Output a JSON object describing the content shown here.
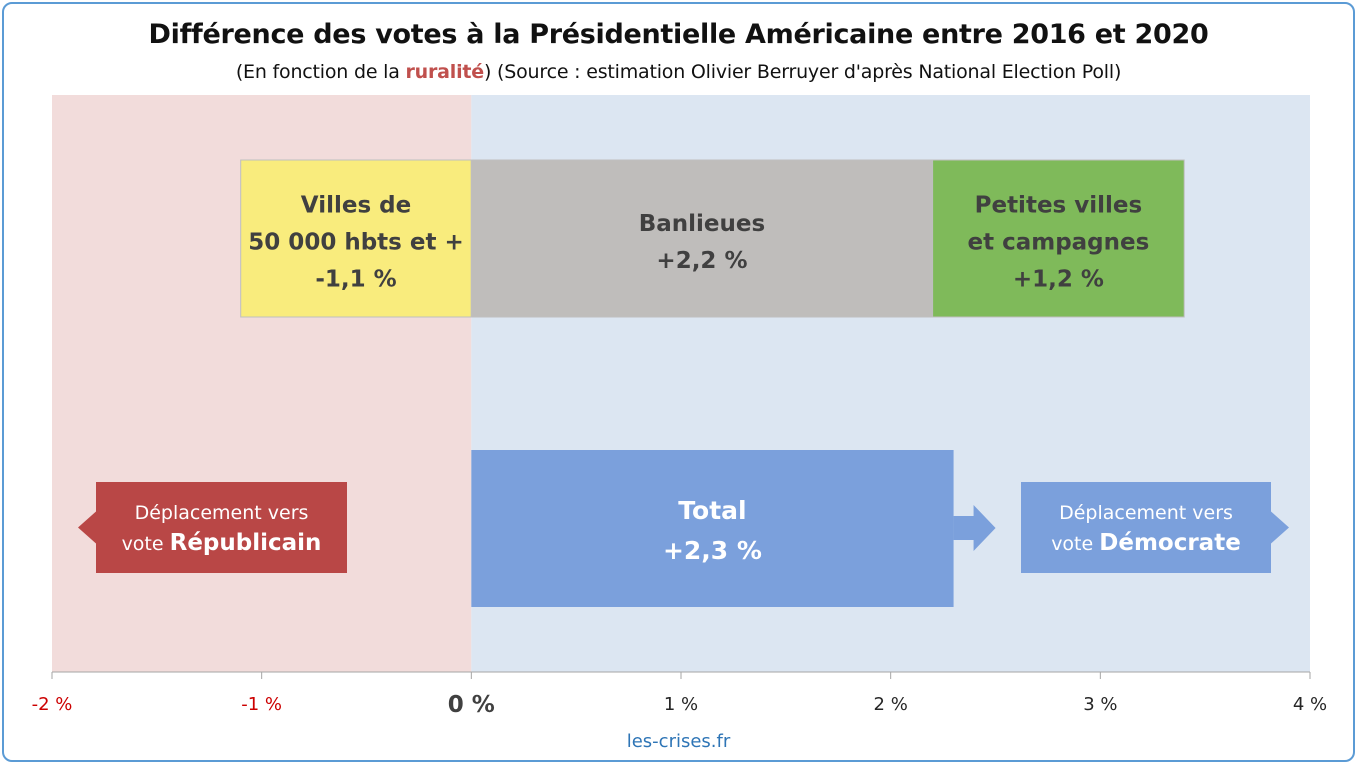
{
  "title": "Différence des votes à la Présidentielle Américaine entre 2016 et 2020",
  "subtitle": {
    "before": "(En fonction de la ",
    "highlight": "ruralité",
    "after": ") (Source : estimation Olivier Berruyer d'après National Election Poll)"
  },
  "footer": "les-crises.fr",
  "colors": {
    "republican_zone": "#f2dcdb",
    "democrat_zone": "#dce6f2",
    "cities": "#f9ec7d",
    "suburbs": "#bfbdbb",
    "rural": "#7fba5a",
    "total": "#7ba0dc",
    "republican_label": "#b94746",
    "democrat_label": "#7ba0dc",
    "negative_tick": "#cc0000"
  },
  "chart_data": {
    "type": "bar",
    "title": "Différence des votes à la Présidentielle Américaine entre 2016 et 2020",
    "xlim": [
      -2,
      4
    ],
    "x_ticks": [
      -2,
      -1,
      0,
      1,
      2,
      3,
      4
    ],
    "tick_labels": [
      "-2 %",
      "-1 %",
      "0 %",
      "1 %",
      "2 %",
      "3 %",
      "4 %"
    ],
    "segments": [
      {
        "label_lines": [
          "Villes de",
          "50 000 hbts et +",
          "-1,1 %"
        ],
        "value": -1.1,
        "start": 0,
        "end": -1.1,
        "color": "cities"
      },
      {
        "label_lines": [
          "Banlieues",
          "+2,2 %"
        ],
        "value": 2.2,
        "start": 0,
        "end": 2.2,
        "color": "suburbs"
      },
      {
        "label_lines": [
          "Petites villes",
          "et campagnes",
          "+1,2 %"
        ],
        "value": 1.2,
        "start": 2.2,
        "end": 3.4,
        "color": "rural"
      }
    ],
    "total": {
      "label_lines": [
        "Total",
        "+2,3 %"
      ],
      "value": 2.3
    },
    "annotations": {
      "republican": {
        "prefix": "Déplacement vers",
        "vote": "vote ",
        "party": "Républicain"
      },
      "democrat": {
        "prefix": "Déplacement vers",
        "vote": "vote ",
        "party": "Démocrate"
      }
    }
  }
}
